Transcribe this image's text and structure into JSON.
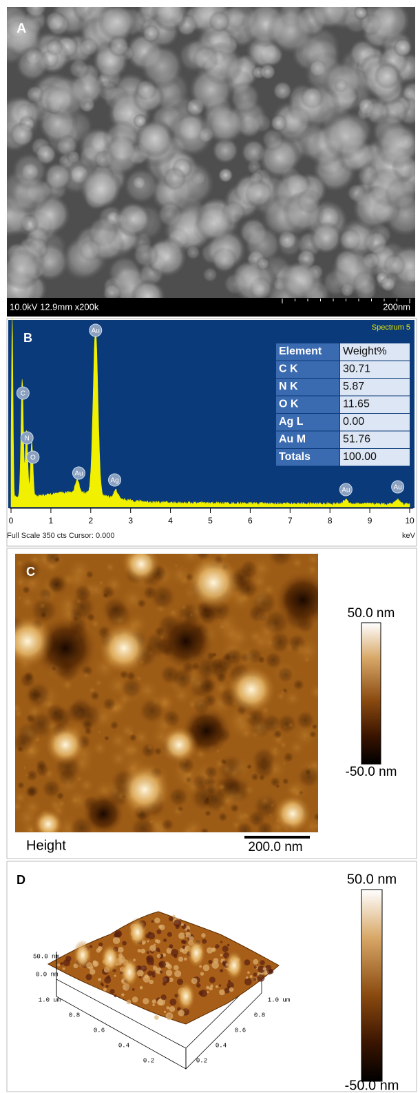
{
  "panels": [
    {
      "label": "A",
      "info": "10.0kV 12.9mm x200k",
      "scale": "200nm"
    },
    {
      "label": "B",
      "spectrum": "Spectrum 5",
      "peaks": [
        "Au",
        "C",
        "N",
        "O",
        "Au",
        "Ag",
        "Au",
        "Au"
      ],
      "table": {
        "header": [
          "Element",
          "Weight%"
        ],
        "rows": [
          [
            "C K",
            "30.71"
          ],
          [
            "N K",
            "5.87"
          ],
          [
            "O K",
            "11.65"
          ],
          [
            "Ag L",
            "0.00"
          ],
          [
            "Au M",
            "51.76"
          ],
          [
            "Totals",
            "100.00"
          ]
        ]
      },
      "xticks": [
        0,
        1,
        2,
        3,
        4,
        5,
        6,
        7,
        8,
        9,
        10
      ],
      "footer": "Full Scale 350 cts Cursor: 0.000",
      "unit": "keV"
    },
    {
      "label": "C",
      "colorbar_max": "50.0 nm",
      "colorbar_min": "-50.0 nm",
      "caption": "Height",
      "scale": "200.0 nm"
    },
    {
      "label": "D",
      "colorbar_max": "50.0 nm",
      "colorbar_min": "-50.0 nm",
      "z_labels": [
        "50.0 nm",
        "0.0 nm"
      ],
      "x_labels": [
        "1.0 um",
        "0.8",
        "0.6",
        "0.4",
        "0.2"
      ],
      "y_labels": [
        "1.0 um",
        "0.8",
        "0.6",
        "0.4",
        "0.2"
      ]
    }
  ]
}
